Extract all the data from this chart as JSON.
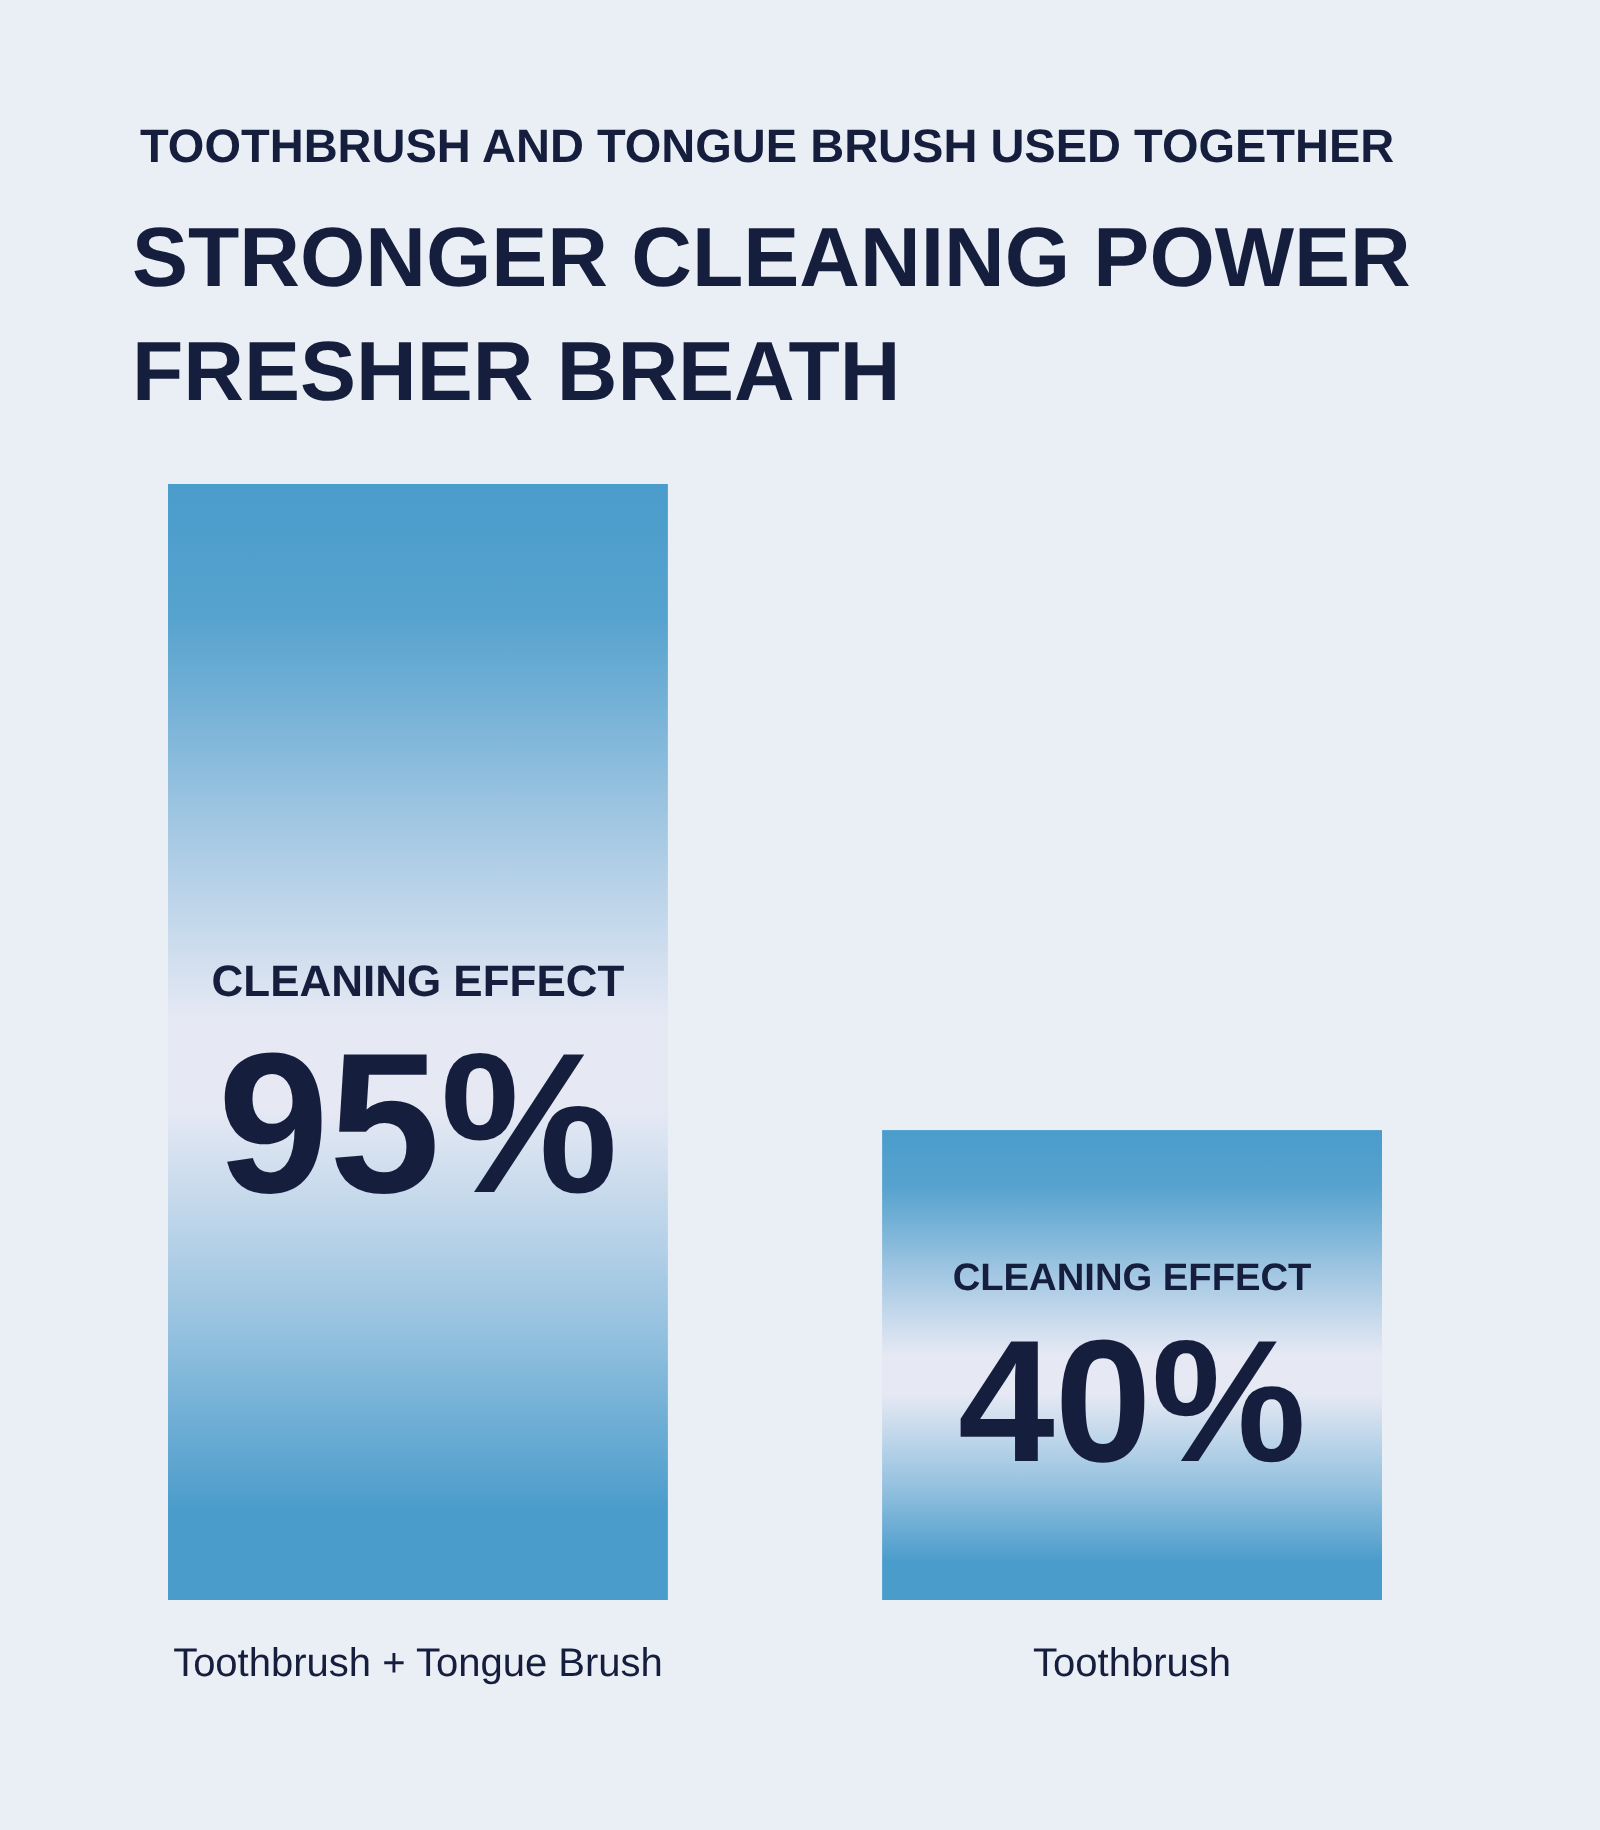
{
  "chart_data": {
    "type": "bar",
    "subtitle": "TOOTHBRUSH AND TONGUE BRUSH USED TOGETHER",
    "title": "STRONGER CLEANING POWER\nFRESHER BREATH",
    "categories": [
      "Toothbrush + Tongue Brush",
      "Toothbrush"
    ],
    "values": [
      95,
      40
    ],
    "color": "#4a9ccb",
    "value_labels": [
      "95%",
      "40%"
    ],
    "annotations": [
      "CLEANING EFFECT",
      "CLEANING EFFECT"
    ]
  }
}
